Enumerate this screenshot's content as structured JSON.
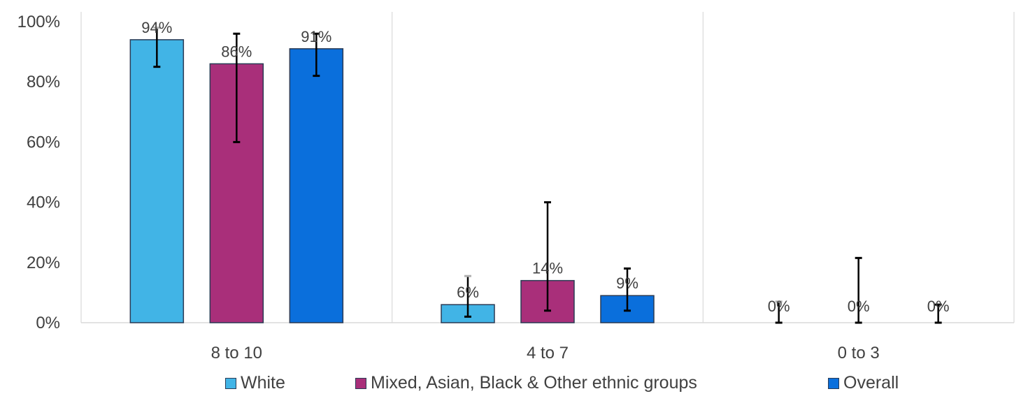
{
  "chart_data": {
    "type": "bar",
    "categories": [
      "8 to 10",
      "4 to 7",
      "0 to 3"
    ],
    "ylim": [
      0,
      100
    ],
    "y_ticks": [
      "0%",
      "20%",
      "40%",
      "60%",
      "80%",
      "100%"
    ],
    "y_tick_values": [
      0,
      20,
      40,
      60,
      80,
      100
    ],
    "grid": "vertical separators between categories",
    "legend_position": "bottom",
    "series": [
      {
        "name": "White",
        "color": "#41b4e6",
        "values": [
          94,
          6,
          0
        ],
        "labels": [
          "94%",
          "6%",
          "0%"
        ],
        "error_low": [
          85,
          2,
          0
        ],
        "error_high": [
          98,
          15.5,
          7
        ],
        "error_cap_color": "#b0b0b0"
      },
      {
        "name": "Mixed, Asian, Black & Other ethnic groups",
        "color": "#a92f7a",
        "values": [
          86,
          14,
          0
        ],
        "labels": [
          "86%",
          "14%",
          "0%"
        ],
        "error_low": [
          60,
          4,
          0
        ],
        "error_high": [
          96,
          40,
          21.5
        ],
        "error_cap_color": "#000000"
      },
      {
        "name": "Overall",
        "color": "#0a6fdc",
        "values": [
          91,
          9,
          0
        ],
        "labels": [
          "91%",
          "9%",
          "0%"
        ],
        "error_low": [
          82,
          4,
          0
        ],
        "error_high": [
          96,
          18,
          6
        ],
        "error_cap_color": "#000000"
      }
    ]
  }
}
